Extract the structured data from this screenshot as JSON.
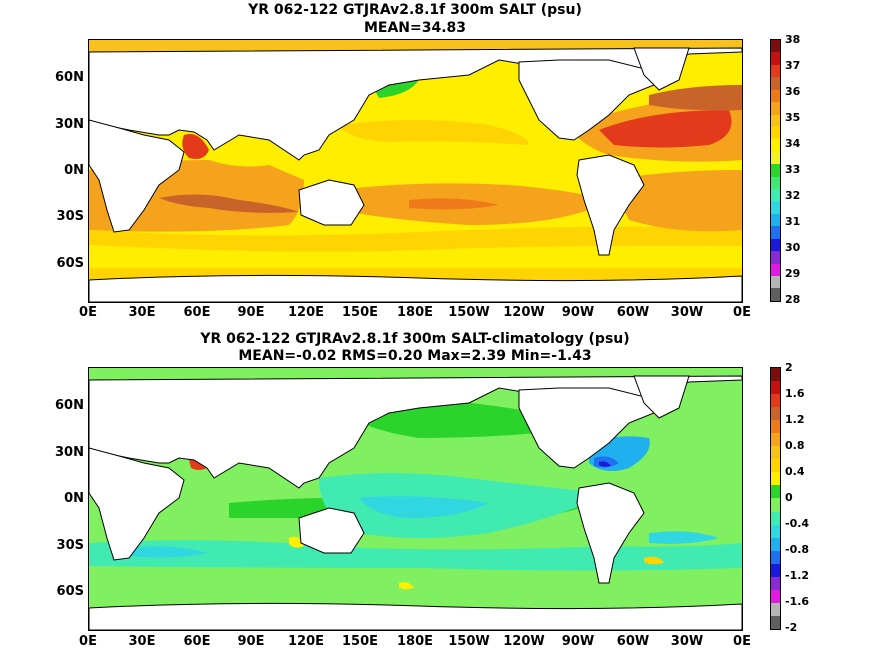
{
  "top": {
    "title": "YR 062-122 GTJRAv2.8.1f 300m SALT (psu)",
    "subtitle": "MEAN=34.83",
    "lat_labels": [
      "60N",
      "30N",
      "0N",
      "30S",
      "60S"
    ],
    "lon_labels": [
      "0E",
      "30E",
      "60E",
      "90E",
      "120E",
      "150E",
      "180E",
      "150W",
      "120W",
      "90W",
      "60W",
      "30W",
      "0E"
    ],
    "colorbar_labels": [
      "38",
      "37",
      "36",
      "35",
      "34",
      "33",
      "32",
      "31",
      "30",
      "29",
      "28"
    ],
    "colorbar_colors": [
      "#7a0e0e",
      "#c41212",
      "#e23a1a",
      "#c8642a",
      "#ee7a1a",
      "#f5a21c",
      "#f7c21e",
      "#ffd400",
      "#ffee00",
      "#f0f230",
      "#2ad42a",
      "#40e870",
      "#40eab0",
      "#30d6e0",
      "#20b0f0",
      "#2070f0",
      "#1a1adc",
      "#8a2ad6",
      "#e01ae0",
      "#b4b4b4",
      "#606060"
    ]
  },
  "bottom": {
    "title": "YR 062-122 GTJRAv2.8.1f 300m SALT-climatology (psu)",
    "subtitle": "MEAN=-0.02   RMS=0.20   Max=2.39   Min=-1.43",
    "lat_labels": [
      "60N",
      "30N",
      "0N",
      "30S",
      "60S"
    ],
    "lon_labels": [
      "0E",
      "30E",
      "60E",
      "90E",
      "120E",
      "150E",
      "180E",
      "150W",
      "120W",
      "90W",
      "60W",
      "30W",
      "0E"
    ],
    "colorbar_labels": [
      "2",
      "1.6",
      "1.2",
      "0.8",
      "0.4",
      "0",
      "-0.4",
      "-0.8",
      "-1.2",
      "-1.6",
      "-2"
    ],
    "colorbar_colors": [
      "#7a0e0e",
      "#c41212",
      "#e23a1a",
      "#c8642a",
      "#ee7a1a",
      "#f5a21c",
      "#f7c21e",
      "#ffd400",
      "#ffee00",
      "#2ad42a",
      "#80f060",
      "#40eab0",
      "#30d6e0",
      "#20b0f0",
      "#2070f0",
      "#1a1adc",
      "#8a2ad6",
      "#e01ae0",
      "#b4b4b4",
      "#606060"
    ]
  }
}
